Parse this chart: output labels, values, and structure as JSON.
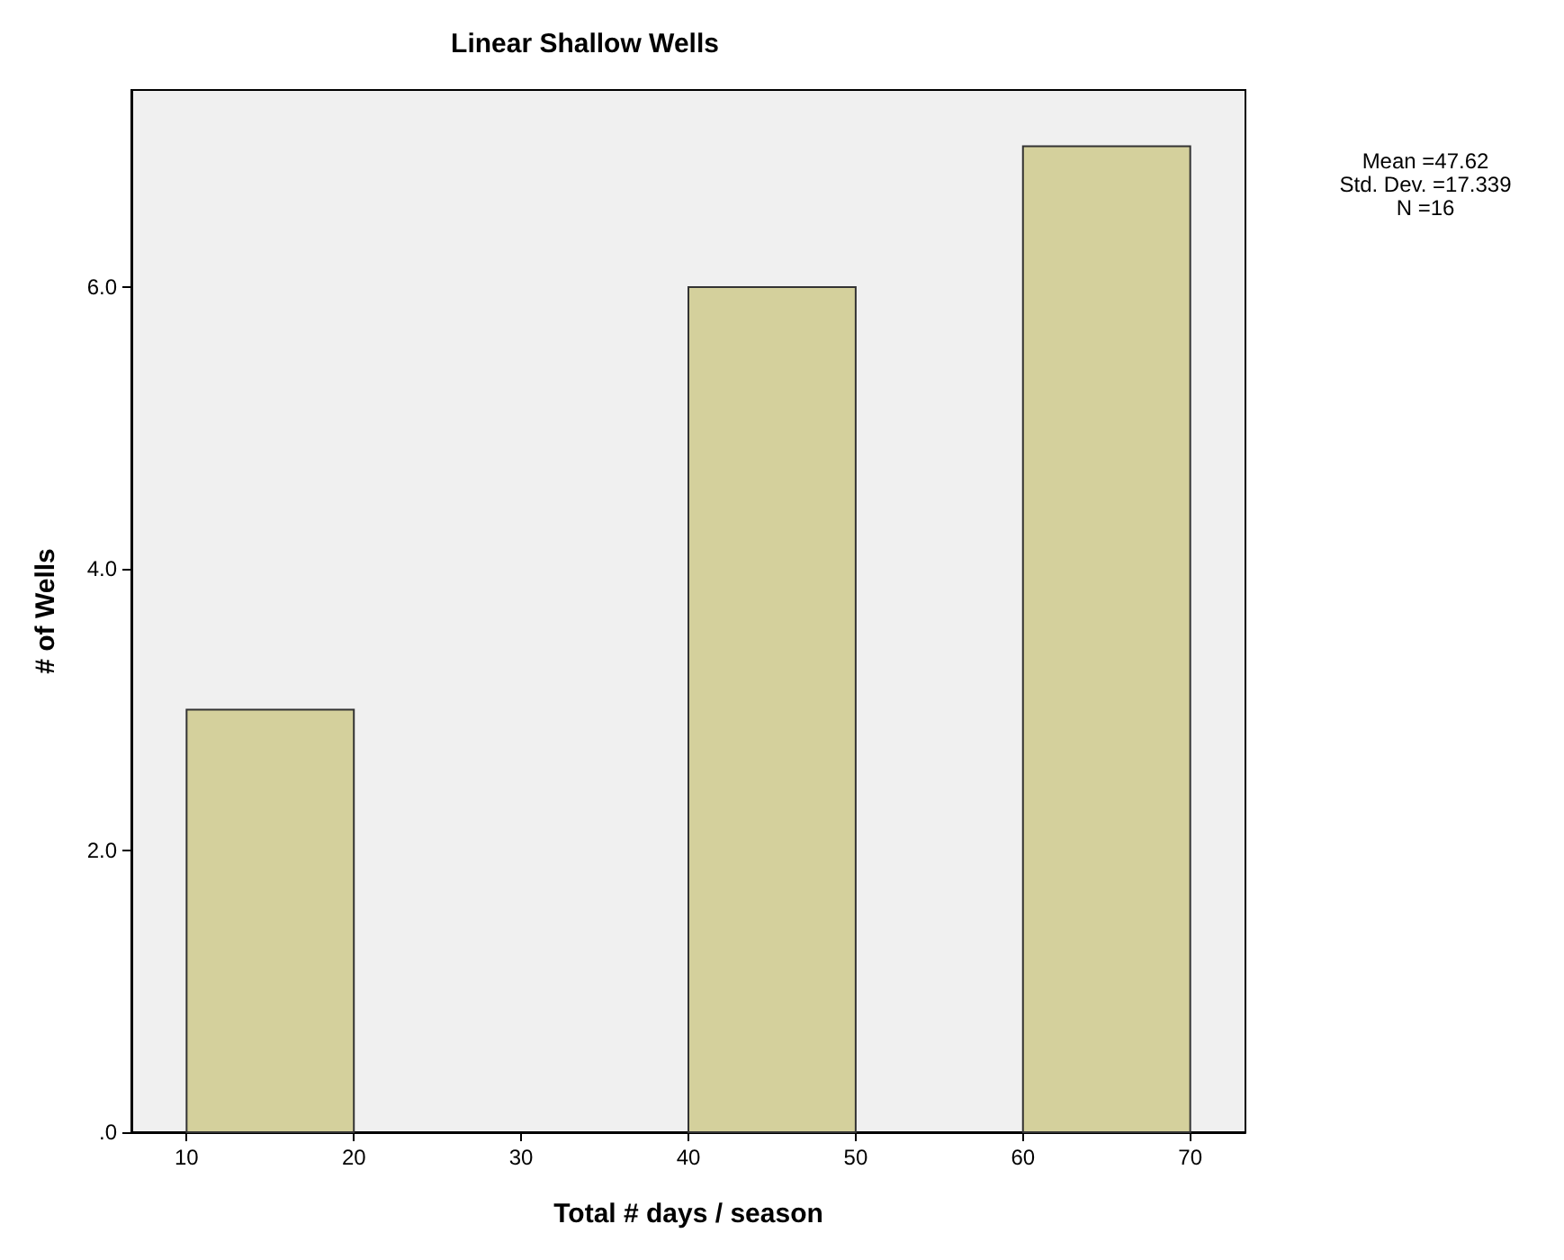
{
  "chart_data": {
    "type": "histogram",
    "title": "Linear Shallow Wells",
    "xlabel": "Total # days / season",
    "ylabel": "# of Wells",
    "bins": [
      10,
      20,
      30,
      40,
      50,
      60,
      70
    ],
    "values": [
      3,
      0,
      0,
      6,
      0,
      7
    ],
    "color": "#d4d09c",
    "xlim": [
      6.7,
      73.3
    ],
    "xticks": [
      10,
      20,
      30,
      40,
      50,
      60,
      70
    ],
    "ylim": [
      0,
      7.4
    ],
    "yticks": [
      {
        "value": 0,
        "label": ".0"
      },
      {
        "value": 2,
        "label": "2.0"
      },
      {
        "value": 4,
        "label": "4.0"
      },
      {
        "value": 6,
        "label": "6.0"
      }
    ],
    "grid": false,
    "annotations": [
      "Mean =47.62",
      "Std. Dev. =17.339",
      "N =16"
    ]
  }
}
